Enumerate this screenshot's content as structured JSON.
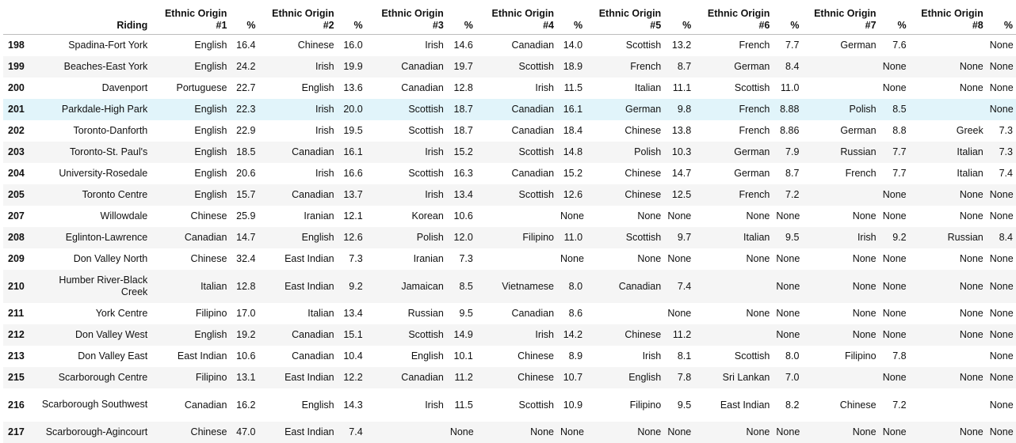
{
  "table": {
    "headers": [
      "",
      "Riding",
      "Ethnic Origin #1",
      "%",
      "Ethnic Origin #2",
      "%",
      "Ethnic Origin #3",
      "%",
      "Ethnic Origin #4",
      "%",
      "Ethnic Origin #5",
      "%",
      "Ethnic Origin #6",
      "%",
      "Ethnic Origin #7",
      "%",
      "Ethnic Origin #8",
      "%"
    ],
    "rows": [
      [
        "198",
        "Spadina-Fort York",
        "English",
        "16.4",
        "Chinese",
        "16.0",
        "Irish",
        "14.6",
        "Canadian",
        "14.0",
        "Scottish",
        "13.2",
        "French",
        "7.7",
        "German",
        "7.6",
        "",
        "None"
      ],
      [
        "199",
        "Beaches-East York",
        "English",
        "24.2",
        "Irish",
        "19.9",
        "Canadian",
        "19.7",
        "Scottish",
        "18.9",
        "French",
        "8.7",
        "German",
        "8.4",
        "",
        "None",
        "None",
        "None"
      ],
      [
        "200",
        "Davenport",
        "Portuguese",
        "22.7",
        "English",
        "13.6",
        "Canadian",
        "12.8",
        "Irish",
        "11.5",
        "Italian",
        "11.1",
        "Scottish",
        "11.0",
        "",
        "None",
        "None",
        "None"
      ],
      [
        "201",
        "Parkdale-High Park",
        "English",
        "22.3",
        "Irish",
        "20.0",
        "Scottish",
        "18.7",
        "Canadian",
        "16.1",
        "German",
        "9.8",
        "French",
        "8.88",
        "Polish",
        "8.5",
        "",
        "None"
      ],
      [
        "202",
        "Toronto-Danforth",
        "English",
        "22.9",
        "Irish",
        "19.5",
        "Scottish",
        "18.7",
        "Canadian",
        "18.4",
        "Chinese",
        "13.8",
        "French",
        "8.86",
        "German",
        "8.8",
        "Greek",
        "7.3"
      ],
      [
        "203",
        "Toronto-St. Paul's",
        "English",
        "18.5",
        "Canadian",
        "16.1",
        "Irish",
        "15.2",
        "Scottish",
        "14.8",
        "Polish",
        "10.3",
        "German",
        "7.9",
        "Russian",
        "7.7",
        "Italian",
        "7.3"
      ],
      [
        "204",
        "University-Rosedale",
        "English",
        "20.6",
        "Irish",
        "16.6",
        "Scottish",
        "16.3",
        "Canadian",
        "15.2",
        "Chinese",
        "14.7",
        "German",
        "8.7",
        "French",
        "7.7",
        "Italian",
        "7.4"
      ],
      [
        "205",
        "Toronto Centre",
        "English",
        "15.7",
        "Canadian",
        "13.7",
        "Irish",
        "13.4",
        "Scottish",
        "12.6",
        "Chinese",
        "12.5",
        "French",
        "7.2",
        "",
        "None",
        "None",
        "None"
      ],
      [
        "207",
        "Willowdale",
        "Chinese",
        "25.9",
        "Iranian",
        "12.1",
        "Korean",
        "10.6",
        "",
        "None",
        "None",
        "None",
        "None",
        "None",
        "None",
        "None",
        "None",
        "None"
      ],
      [
        "208",
        "Eglinton-Lawrence",
        "Canadian",
        "14.7",
        "English",
        "12.6",
        "Polish",
        "12.0",
        "Filipino",
        "11.0",
        "Scottish",
        "9.7",
        "Italian",
        "9.5",
        "Irish",
        "9.2",
        "Russian",
        "8.4"
      ],
      [
        "209",
        "Don Valley North",
        "Chinese",
        "32.4",
        "East Indian",
        "7.3",
        "Iranian",
        "7.3",
        "",
        "None",
        "None",
        "None",
        "None",
        "None",
        "None",
        "None",
        "None",
        "None"
      ],
      [
        "210",
        "Humber River-Black Creek",
        "Italian",
        "12.8",
        "East Indian",
        "9.2",
        "Jamaican",
        "8.5",
        "Vietnamese",
        "8.0",
        "Canadian",
        "7.4",
        "",
        "None",
        "None",
        "None",
        "None",
        "None"
      ],
      [
        "211",
        "York Centre",
        "Filipino",
        "17.0",
        "Italian",
        "13.4",
        "Russian",
        "9.5",
        "Canadian",
        "8.6",
        "",
        "None",
        "None",
        "None",
        "None",
        "None",
        "None",
        "None"
      ],
      [
        "212",
        "Don Valley West",
        "English",
        "19.2",
        "Canadian",
        "15.1",
        "Scottish",
        "14.9",
        "Irish",
        "14.2",
        "Chinese",
        "11.2",
        "",
        "None",
        "None",
        "None",
        "None",
        "None"
      ],
      [
        "213",
        "Don Valley East",
        "East Indian",
        "10.6",
        "Canadian",
        "10.4",
        "English",
        "10.1",
        "Chinese",
        "8.9",
        "Irish",
        "8.1",
        "Scottish",
        "8.0",
        "Filipino",
        "7.8",
        "",
        "None"
      ],
      [
        "215",
        "Scarborough Centre",
        "Filipino",
        "13.1",
        "East Indian",
        "12.2",
        "Canadian",
        "11.2",
        "Chinese",
        "10.7",
        "English",
        "7.8",
        "Sri Lankan",
        "7.0",
        "",
        "None",
        "None",
        "None"
      ],
      [
        "216",
        "Scarborough Southwest",
        "Canadian",
        "16.2",
        "English",
        "14.3",
        "Irish",
        "11.5",
        "Scottish",
        "10.9",
        "Filipino",
        "9.5",
        "East Indian",
        "8.2",
        "Chinese",
        "7.2",
        "",
        "None"
      ],
      [
        "217",
        "Scarborough-Agincourt",
        "Chinese",
        "47.0",
        "East Indian",
        "7.4",
        "",
        "None",
        "None",
        "None",
        "None",
        "None",
        "None",
        "None",
        "None",
        "None",
        "None",
        "None"
      ]
    ]
  }
}
